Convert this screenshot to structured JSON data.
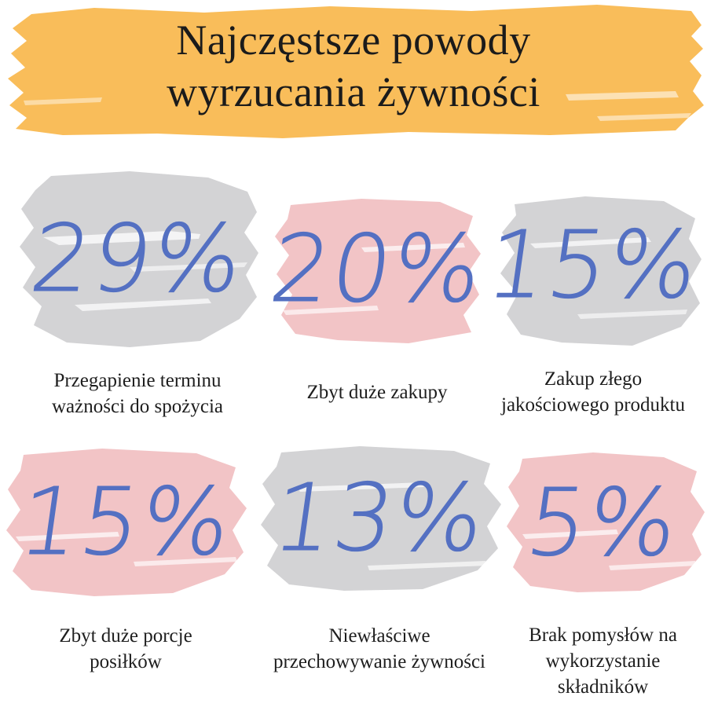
{
  "title": {
    "line1": "Najczęstsze powody",
    "line2": "wyrzucania żywności"
  },
  "colors": {
    "title_band": "#f9bd5a",
    "gray_blob": "#d3d3d5",
    "pink_blob": "#f2c4c6",
    "percent_text": "#5470c2"
  },
  "items": [
    {
      "percent": "29%",
      "caption1": "Przegapienie terminu",
      "caption2": "ważności do spożycia",
      "caption3": ""
    },
    {
      "percent": "20%",
      "caption1": "Zbyt duże zakupy",
      "caption2": "",
      "caption3": ""
    },
    {
      "percent": "15%",
      "caption1": "Zakup złego",
      "caption2": "jakościowego produktu",
      "caption3": ""
    },
    {
      "percent": "15%",
      "caption1": "Zbyt duże porcje",
      "caption2": "posiłków",
      "caption3": ""
    },
    {
      "percent": "13%",
      "caption1": "Niewłaściwe",
      "caption2": "przechowywanie żywności",
      "caption3": ""
    },
    {
      "percent": "5%",
      "caption1": "Brak pomysłów na",
      "caption2": "wykorzystanie",
      "caption3": "składników"
    }
  ]
}
